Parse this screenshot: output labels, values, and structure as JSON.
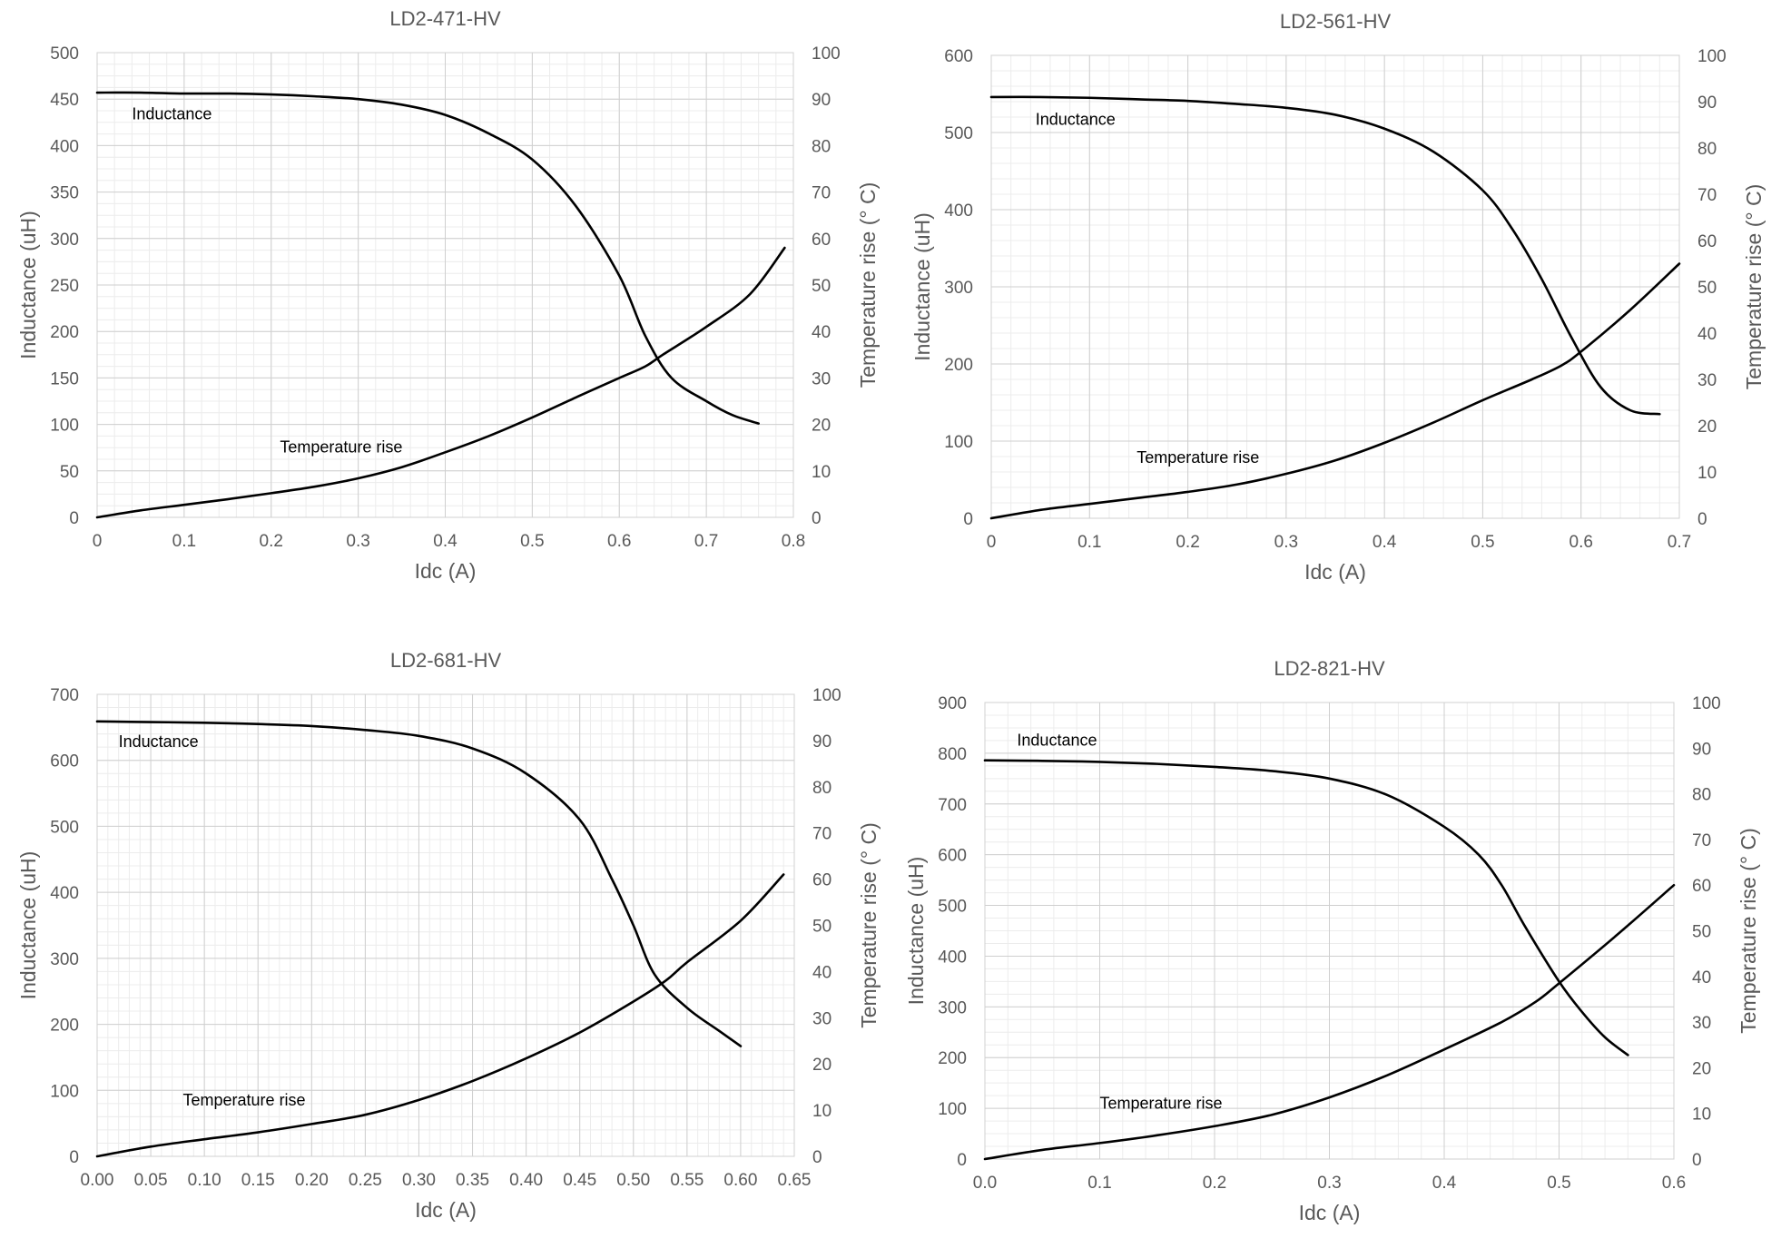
{
  "colors": {
    "curve": "#000000",
    "text": "#595959",
    "grid_major": "#cfcfcf",
    "grid_minor": "#ececec"
  },
  "chart_data": [
    {
      "id": "ld2-471",
      "type": "line",
      "title": "LD2-471-HV",
      "xlabel": "Idc (A)",
      "ylabel": "Inductance (uH)",
      "y2label": "Temperature rise (° C)",
      "xlim": [
        0,
        0.8
      ],
      "ylim": [
        0,
        500
      ],
      "y2lim": [
        0,
        100
      ],
      "xticks": [
        0,
        0.1,
        0.2,
        0.3,
        0.4,
        0.5,
        0.6,
        0.7,
        0.8
      ],
      "xtick_labels": [
        "0",
        "0.1",
        "0.2",
        "0.3",
        "0.4",
        "0.5",
        "0.6",
        "0.7",
        "0.8"
      ],
      "yticks": [
        0,
        50,
        100,
        150,
        200,
        250,
        300,
        350,
        400,
        450,
        500
      ],
      "ytick_labels": [
        "0",
        "50",
        "100",
        "150",
        "200",
        "250",
        "300",
        "350",
        "400",
        "450",
        "500"
      ],
      "y2ticks": [
        0,
        10,
        20,
        30,
        40,
        50,
        60,
        70,
        80,
        90,
        100
      ],
      "y2tick_labels": [
        "0",
        "10",
        "20",
        "30",
        "40",
        "50",
        "60",
        "70",
        "80",
        "90",
        "100"
      ],
      "x_minor": 0.02,
      "y_minor": 12.5,
      "series": [
        {
          "name": "Inductance",
          "axis": "left",
          "label_at": [
            0.04,
            428
          ],
          "points": [
            [
              0,
              457
            ],
            [
              0.05,
              457
            ],
            [
              0.1,
              456
            ],
            [
              0.15,
              456
            ],
            [
              0.2,
              455
            ],
            [
              0.25,
              453
            ],
            [
              0.3,
              450
            ],
            [
              0.35,
              444
            ],
            [
              0.4,
              433
            ],
            [
              0.45,
              413
            ],
            [
              0.5,
              385
            ],
            [
              0.55,
              335
            ],
            [
              0.6,
              260
            ],
            [
              0.63,
              195
            ],
            [
              0.66,
              150
            ],
            [
              0.7,
              125
            ],
            [
              0.73,
              110
            ],
            [
              0.76,
              101
            ]
          ]
        },
        {
          "name": "Temperature rise",
          "axis": "right",
          "label_at": [
            0.21,
            14
          ],
          "points": [
            [
              0,
              0
            ],
            [
              0.05,
              1.5
            ],
            [
              0.1,
              2.7
            ],
            [
              0.15,
              3.9
            ],
            [
              0.2,
              5.2
            ],
            [
              0.25,
              6.6
            ],
            [
              0.3,
              8.4
            ],
            [
              0.35,
              10.8
            ],
            [
              0.4,
              14.0
            ],
            [
              0.45,
              17.5
            ],
            [
              0.5,
              21.5
            ],
            [
              0.55,
              25.8
            ],
            [
              0.6,
              30.0
            ],
            [
              0.63,
              32.5
            ],
            [
              0.65,
              35.0
            ],
            [
              0.7,
              41.0
            ],
            [
              0.75,
              48.0
            ],
            [
              0.79,
              58.0
            ]
          ]
        }
      ]
    },
    {
      "id": "ld2-561",
      "type": "line",
      "title": "LD2-561-HV",
      "xlabel": "Idc (A)",
      "ylabel": "Inductance (uH)",
      "y2label": "Temperature rise (° C)",
      "xlim": [
        0,
        0.7
      ],
      "ylim": [
        0,
        600
      ],
      "y2lim": [
        0,
        100
      ],
      "xticks": [
        0,
        0.1,
        0.2,
        0.3,
        0.4,
        0.5,
        0.6,
        0.7
      ],
      "xtick_labels": [
        "0",
        "0.1",
        "0.2",
        "0.3",
        "0.4",
        "0.5",
        "0.6",
        "0.7"
      ],
      "yticks": [
        0,
        100,
        200,
        300,
        400,
        500,
        600
      ],
      "ytick_labels": [
        "0",
        "100",
        "200",
        "300",
        "400",
        "500",
        "600"
      ],
      "y2ticks": [
        0,
        10,
        20,
        30,
        40,
        50,
        60,
        70,
        80,
        90,
        100
      ],
      "y2tick_labels": [
        "0",
        "10",
        "20",
        "30",
        "40",
        "50",
        "60",
        "70",
        "80",
        "90",
        "100"
      ],
      "x_minor": 0.02,
      "y_minor": 20,
      "series": [
        {
          "name": "Inductance",
          "axis": "left",
          "label_at": [
            0.045,
            510
          ],
          "points": [
            [
              0,
              546
            ],
            [
              0.05,
              546
            ],
            [
              0.1,
              545
            ],
            [
              0.15,
              543
            ],
            [
              0.2,
              541
            ],
            [
              0.25,
              537
            ],
            [
              0.3,
              532
            ],
            [
              0.35,
              523
            ],
            [
              0.4,
              505
            ],
            [
              0.45,
              475
            ],
            [
              0.5,
              425
            ],
            [
              0.53,
              375
            ],
            [
              0.56,
              310
            ],
            [
              0.59,
              235
            ],
            [
              0.62,
              170
            ],
            [
              0.65,
              140
            ],
            [
              0.68,
              135
            ]
          ]
        },
        {
          "name": "Temperature rise",
          "axis": "right",
          "label_at": [
            0.148,
            12
          ],
          "points": [
            [
              0,
              0
            ],
            [
              0.05,
              1.8
            ],
            [
              0.1,
              3.1
            ],
            [
              0.15,
              4.4
            ],
            [
              0.2,
              5.7
            ],
            [
              0.25,
              7.3
            ],
            [
              0.3,
              9.6
            ],
            [
              0.35,
              12.5
            ],
            [
              0.4,
              16.3
            ],
            [
              0.45,
              20.7
            ],
            [
              0.5,
              25.5
            ],
            [
              0.55,
              30.0
            ],
            [
              0.58,
              33.0
            ],
            [
              0.6,
              36.0
            ],
            [
              0.65,
              45.0
            ],
            [
              0.7,
              55.0
            ]
          ]
        }
      ]
    },
    {
      "id": "ld2-681",
      "type": "line",
      "title": "LD2-681-HV",
      "xlabel": "Idc (A)",
      "ylabel": "Inductance (uH)",
      "y2label": "Temperature rise (° C)",
      "xlim": [
        0,
        0.65
      ],
      "ylim": [
        0,
        700
      ],
      "y2lim": [
        0,
        100
      ],
      "xticks": [
        0,
        0.05,
        0.1,
        0.15,
        0.2,
        0.25,
        0.3,
        0.35,
        0.4,
        0.45,
        0.5,
        0.55,
        0.6,
        0.65
      ],
      "xtick_labels": [
        "0.00",
        "0.05",
        "0.10",
        "0.15",
        "0.20",
        "0.25",
        "0.30",
        "0.35",
        "0.40",
        "0.45",
        "0.50",
        "0.55",
        "0.60",
        "0.65"
      ],
      "yticks": [
        0,
        100,
        200,
        300,
        400,
        500,
        600,
        700
      ],
      "ytick_labels": [
        "0",
        "100",
        "200",
        "300",
        "400",
        "500",
        "600",
        "700"
      ],
      "y2ticks": [
        0,
        10,
        20,
        30,
        40,
        50,
        60,
        70,
        80,
        90,
        100
      ],
      "y2tick_labels": [
        "0",
        "10",
        "20",
        "30",
        "40",
        "50",
        "60",
        "70",
        "80",
        "90",
        "100"
      ],
      "x_minor": 0.01,
      "y_minor": 20,
      "series": [
        {
          "name": "Inductance",
          "axis": "left",
          "label_at": [
            0.02,
            620
          ],
          "points": [
            [
              0,
              659
            ],
            [
              0.05,
              658
            ],
            [
              0.1,
              657
            ],
            [
              0.15,
              655
            ],
            [
              0.2,
              652
            ],
            [
              0.25,
              646
            ],
            [
              0.3,
              637
            ],
            [
              0.35,
              618
            ],
            [
              0.4,
              580
            ],
            [
              0.45,
              510
            ],
            [
              0.48,
              420
            ],
            [
              0.5,
              350
            ],
            [
              0.52,
              275
            ],
            [
              0.55,
              225
            ],
            [
              0.58,
              190
            ],
            [
              0.6,
              167
            ]
          ]
        },
        {
          "name": "Temperature rise",
          "axis": "right",
          "label_at": [
            0.08,
            11
          ],
          "points": [
            [
              0,
              0
            ],
            [
              0.05,
              2.1
            ],
            [
              0.1,
              3.7
            ],
            [
              0.15,
              5.2
            ],
            [
              0.2,
              7.0
            ],
            [
              0.25,
              9.0
            ],
            [
              0.3,
              12.2
            ],
            [
              0.35,
              16.3
            ],
            [
              0.4,
              21.2
            ],
            [
              0.45,
              26.8
            ],
            [
              0.5,
              33.5
            ],
            [
              0.53,
              38.0
            ],
            [
              0.55,
              42.0
            ],
            [
              0.6,
              51.0
            ],
            [
              0.64,
              61.0
            ]
          ]
        }
      ]
    },
    {
      "id": "ld2-821",
      "type": "line",
      "title": "LD2-821-HV",
      "xlabel": "Idc (A)",
      "ylabel": "Inductance (uH)",
      "y2label": "Temperature rise (° C)",
      "xlim": [
        0,
        0.6
      ],
      "ylim": [
        0,
        900
      ],
      "y2lim": [
        0,
        100
      ],
      "xticks": [
        0,
        0.1,
        0.2,
        0.3,
        0.4,
        0.5,
        0.6
      ],
      "xtick_labels": [
        "0.0",
        "0.1",
        "0.2",
        "0.3",
        "0.4",
        "0.5",
        "0.6"
      ],
      "yticks": [
        0,
        100,
        200,
        300,
        400,
        500,
        600,
        700,
        800,
        900
      ],
      "ytick_labels": [
        "0",
        "100",
        "200",
        "300",
        "400",
        "500",
        "600",
        "700",
        "800",
        "900"
      ],
      "y2ticks": [
        0,
        10,
        20,
        30,
        40,
        50,
        60,
        70,
        80,
        90,
        100
      ],
      "y2tick_labels": [
        "0",
        "10",
        "20",
        "30",
        "40",
        "50",
        "60",
        "70",
        "80",
        "90",
        "100"
      ],
      "x_minor": 0.02,
      "y_minor": 25,
      "series": [
        {
          "name": "Inductance",
          "axis": "left",
          "label_at": [
            0.028,
            815
          ],
          "points": [
            [
              0,
              786
            ],
            [
              0.05,
              785
            ],
            [
              0.1,
              783
            ],
            [
              0.15,
              779
            ],
            [
              0.2,
              773
            ],
            [
              0.25,
              765
            ],
            [
              0.3,
              750
            ],
            [
              0.35,
              718
            ],
            [
              0.4,
              655
            ],
            [
              0.43,
              600
            ],
            [
              0.45,
              540
            ],
            [
              0.47,
              460
            ],
            [
              0.5,
              350
            ],
            [
              0.52,
              290
            ],
            [
              0.54,
              240
            ],
            [
              0.56,
              205
            ]
          ]
        },
        {
          "name": "Temperature rise",
          "axis": "right",
          "label_at": [
            0.1,
            11
          ],
          "points": [
            [
              0,
              0
            ],
            [
              0.05,
              2.0
            ],
            [
              0.1,
              3.5
            ],
            [
              0.15,
              5.2
            ],
            [
              0.2,
              7.2
            ],
            [
              0.25,
              9.7
            ],
            [
              0.3,
              13.5
            ],
            [
              0.35,
              18.3
            ],
            [
              0.4,
              24.0
            ],
            [
              0.45,
              30.0
            ],
            [
              0.48,
              34.5
            ],
            [
              0.5,
              38.5
            ],
            [
              0.55,
              49.0
            ],
            [
              0.6,
              60.0
            ]
          ]
        }
      ]
    }
  ]
}
